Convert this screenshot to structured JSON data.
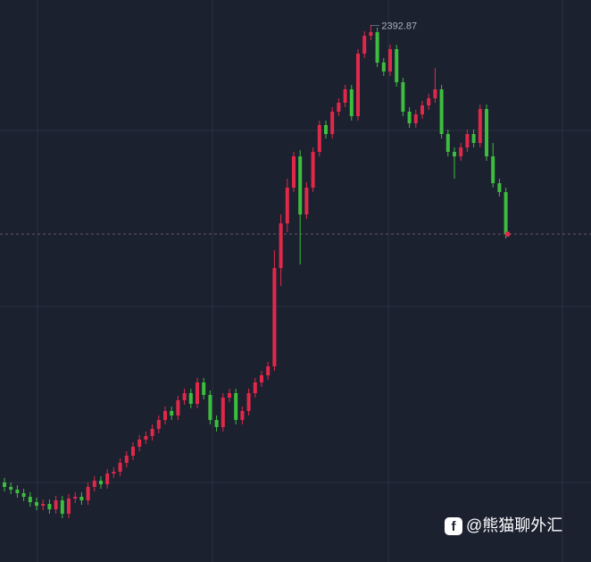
{
  "chart_data": {
    "type": "candlestick",
    "ylim": [
      2242.75,
      2400
    ],
    "up_color": "#e0294a",
    "down_color": "#3dbd3d",
    "open": [
      2265,
      2263.75,
      2263,
      2262,
      2261,
      2259.5,
      2258.5,
      2259,
      2257.5,
      2260,
      2256.25,
      2260.5,
      2261,
      2260,
      2263.75,
      2265.5,
      2264.5,
      2267.5,
      2268,
      2270.5,
      2272.5,
      2275,
      2277,
      2278,
      2280,
      2282.5,
      2285,
      2283.75,
      2288,
      2290,
      2287,
      2293,
      2289.5,
      2282.5,
      2280.5,
      2288.75,
      2290,
      2282.5,
      2285,
      2290,
      2293,
      2295,
      2297.5,
      2325,
      2337.5,
      2347.5,
      2356.25,
      2340,
      2347.5,
      2357.5,
      2365,
      2362.5,
      2368.75,
      2371.25,
      2375,
      2367.5,
      2385,
      2390,
      2391,
      2382.5,
      2380,
      2386.25,
      2377,
      2368.75,
      2365.5,
      2368,
      2370.5,
      2372.5,
      2375,
      2362.5,
      2357.5,
      2356.25,
      2358.75,
      2362.5,
      2360,
      2369.5,
      2356.25,
      2348.75,
      2346.25
    ],
    "high": [
      2266.25,
      2265,
      2264.25,
      2263.25,
      2262.25,
      2260.75,
      2260.25,
      2260.25,
      2261.25,
      2261.25,
      2261.75,
      2262.25,
      2262.25,
      2265,
      2266.75,
      2266.75,
      2268.75,
      2269.25,
      2271.75,
      2273.75,
      2276.25,
      2278.25,
      2279.25,
      2281.25,
      2283.75,
      2286.25,
      2286.25,
      2289.25,
      2291.25,
      2291.25,
      2294.25,
      2294.25,
      2290.75,
      2283.75,
      2290,
      2291.25,
      2291.25,
      2286.25,
      2291.25,
      2294.25,
      2296.25,
      2298.75,
      2330,
      2340,
      2350,
      2357.5,
      2358,
      2349,
      2358.75,
      2366.25,
      2366.25,
      2370,
      2372.5,
      2376.25,
      2376.25,
      2386.25,
      2391.25,
      2392.87,
      2392.25,
      2383.75,
      2387.5,
      2387.5,
      2378.25,
      2370,
      2369.25,
      2371.75,
      2373.75,
      2381,
      2376.25,
      2363.75,
      2358.75,
      2360,
      2363.75,
      2363.75,
      2370.75,
      2370.75,
      2360,
      2350,
      2347.5
    ],
    "low": [
      2262.5,
      2261.75,
      2260.75,
      2259.75,
      2258.25,
      2257.25,
      2257.25,
      2256.25,
      2256.25,
      2255,
      2255,
      2259.25,
      2258.75,
      2258.75,
      2262.5,
      2263.25,
      2263.25,
      2266.25,
      2266.75,
      2269.25,
      2271.25,
      2273.75,
      2275.75,
      2276.75,
      2278.75,
      2281.25,
      2282.5,
      2282.5,
      2286.75,
      2285.75,
      2285.75,
      2288.25,
      2281.25,
      2279.25,
      2279.25,
      2287.5,
      2281.25,
      2281.25,
      2283.75,
      2288.75,
      2291.75,
      2293.75,
      2296.25,
      2320,
      2335,
      2346.25,
      2326,
      2338.75,
      2346.25,
      2356.25,
      2361.25,
      2361.25,
      2367.5,
      2370,
      2366.25,
      2366.25,
      2383.75,
      2388.75,
      2381.25,
      2378.75,
      2378.75,
      2375.75,
      2367.5,
      2364.25,
      2364.25,
      2366.75,
      2369.25,
      2371.25,
      2361.25,
      2356.25,
      2350,
      2355,
      2357.5,
      2358.75,
      2358.75,
      2355,
      2347.5,
      2345,
      2333.25
    ],
    "close": [
      2263.75,
      2263,
      2262,
      2261,
      2259.5,
      2258.5,
      2259,
      2257.5,
      2260,
      2256.25,
      2260.5,
      2261,
      2260,
      2263.75,
      2265.5,
      2264.5,
      2267.5,
      2268,
      2270.5,
      2272.5,
      2275,
      2277,
      2278,
      2280,
      2282.5,
      2285,
      2283.75,
      2288,
      2290,
      2287,
      2293,
      2289.5,
      2282.5,
      2280.5,
      2288.75,
      2290,
      2282.5,
      2285,
      2290,
      2293,
      2295,
      2297.5,
      2325,
      2337.5,
      2347.5,
      2356.25,
      2340,
      2347.5,
      2357.5,
      2365,
      2362.5,
      2368.75,
      2371.25,
      2375,
      2367.5,
      2385,
      2390,
      2391,
      2382.5,
      2380,
      2386.25,
      2377,
      2368.75,
      2365.5,
      2368,
      2370.5,
      2372.5,
      2375,
      2362.5,
      2357.5,
      2356.25,
      2358.75,
      2362.5,
      2360,
      2369.5,
      2356.25,
      2348.75,
      2346.25,
      2334.5
    ],
    "watermark": "@熊猫聊外汇"
  }
}
